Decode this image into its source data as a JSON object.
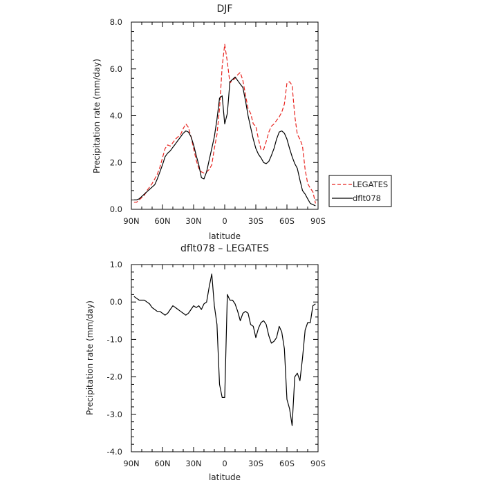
{
  "chart_data": [
    {
      "type": "line",
      "title": "DJF",
      "xlabel": "latitude",
      "ylabel": "Precipitation rate (mm/day)",
      "x_ticks": [
        {
          "value": -90,
          "label": "90N"
        },
        {
          "value": -60,
          "label": "60N"
        },
        {
          "value": -30,
          "label": "30N"
        },
        {
          "value": 0,
          "label": "0"
        },
        {
          "value": 30,
          "label": "30S"
        },
        {
          "value": 60,
          "label": "60S"
        },
        {
          "value": 90,
          "label": "90S"
        }
      ],
      "y_ticks": [
        "0.0",
        "2.0",
        "4.0",
        "6.0",
        "8.0"
      ],
      "xlim": [
        -90,
        90
      ],
      "ylim": [
        0,
        8
      ],
      "grid": false,
      "legend_position": "right, outside plot",
      "series": [
        {
          "name": "LEGATES",
          "color": "#e8231e",
          "style": "dashed",
          "x": [
            -87.5,
            -85,
            -82.5,
            -80,
            -77.5,
            -75,
            -72.5,
            -70,
            -67.5,
            -65,
            -62.5,
            -60,
            -57.5,
            -55,
            -52.5,
            -50,
            -47.5,
            -45,
            -42.5,
            -40,
            -37.5,
            -35,
            -32.5,
            -30,
            -27.5,
            -25,
            -22.5,
            -20,
            -17.5,
            -15,
            -12.5,
            -10,
            -7.5,
            -5,
            -2.5,
            0,
            2.5,
            5,
            7.5,
            10,
            12.5,
            15,
            17.5,
            20,
            22.5,
            25,
            27.5,
            30,
            32.5,
            35,
            37.5,
            40,
            42.5,
            45,
            47.5,
            50,
            52.5,
            55,
            57.5,
            60,
            62.5,
            65,
            67.5,
            70,
            72.5,
            75,
            77.5,
            80,
            82.5,
            85,
            87.5
          ],
          "y": [
            0.3,
            0.3,
            0.4,
            0.5,
            0.6,
            0.8,
            0.95,
            1.1,
            1.3,
            1.5,
            1.8,
            2.2,
            2.6,
            2.75,
            2.7,
            2.85,
            3.0,
            3.1,
            3.2,
            3.45,
            3.65,
            3.5,
            3.1,
            2.6,
            2.1,
            1.75,
            1.6,
            1.55,
            1.6,
            1.7,
            1.9,
            2.6,
            3.2,
            4.3,
            6.1,
            7.05,
            6.3,
            5.4,
            5.5,
            5.6,
            5.75,
            5.85,
            5.5,
            4.9,
            4.3,
            4.1,
            3.65,
            3.55,
            3.0,
            2.55,
            2.55,
            2.9,
            3.3,
            3.55,
            3.65,
            3.8,
            3.95,
            4.15,
            4.5,
            5.4,
            5.45,
            5.3,
            4.0,
            3.2,
            3.0,
            2.7,
            1.7,
            1.1,
            0.9,
            0.75,
            0.25
          ]
        },
        {
          "name": "dflt078",
          "color": "#000000",
          "style": "solid",
          "x": [
            -87.5,
            -85,
            -82.5,
            -80,
            -77.5,
            -75,
            -72.5,
            -70,
            -67.5,
            -65,
            -62.5,
            -60,
            -57.5,
            -55,
            -52.5,
            -50,
            -47.5,
            -45,
            -42.5,
            -40,
            -37.5,
            -35,
            -32.5,
            -30,
            -27.5,
            -25,
            -22.5,
            -20,
            -17.5,
            -15,
            -12.5,
            -10,
            -7.5,
            -5,
            -2.5,
            0,
            2.5,
            5,
            7.5,
            10,
            12.5,
            15,
            17.5,
            20,
            22.5,
            25,
            27.5,
            30,
            32.5,
            35,
            37.5,
            40,
            42.5,
            45,
            47.5,
            50,
            52.5,
            55,
            57.5,
            60,
            62.5,
            65,
            67.5,
            70,
            72.5,
            75,
            77.5,
            80,
            82.5,
            85,
            87.5
          ],
          "y": [
            0.4,
            0.4,
            0.45,
            0.55,
            0.65,
            0.75,
            0.85,
            0.95,
            1.05,
            1.3,
            1.6,
            1.9,
            2.25,
            2.4,
            2.5,
            2.65,
            2.8,
            2.95,
            3.1,
            3.25,
            3.35,
            3.3,
            3.1,
            2.75,
            2.3,
            1.9,
            1.35,
            1.3,
            1.6,
            2.1,
            2.6,
            3.1,
            3.85,
            4.75,
            4.85,
            3.65,
            4.1,
            5.45,
            5.55,
            5.65,
            5.5,
            5.35,
            5.2,
            4.65,
            4.0,
            3.5,
            3.0,
            2.6,
            2.35,
            2.2,
            2.0,
            1.95,
            2.05,
            2.3,
            2.6,
            3.0,
            3.3,
            3.35,
            3.25,
            3.0,
            2.6,
            2.25,
            1.95,
            1.75,
            1.25,
            0.8,
            0.65,
            0.45,
            0.25,
            0.2,
            0.15
          ]
        }
      ]
    },
    {
      "type": "line",
      "title": "dflt078 – LEGATES",
      "xlabel": "latitude",
      "ylabel": "Precipitation rate (mm/day)",
      "x_ticks": [
        {
          "value": -90,
          "label": "90N"
        },
        {
          "value": -60,
          "label": "60N"
        },
        {
          "value": -30,
          "label": "30N"
        },
        {
          "value": 0,
          "label": "0"
        },
        {
          "value": 30,
          "label": "30S"
        },
        {
          "value": 60,
          "label": "60S"
        },
        {
          "value": 90,
          "label": "90S"
        }
      ],
      "y_ticks": [
        "-4.0",
        "-3.0",
        "-2.0",
        "-1.0",
        "0.0",
        "1.0"
      ],
      "xlim": [
        -90,
        90
      ],
      "ylim": [
        -4,
        1
      ],
      "grid": false,
      "series": [
        {
          "color": "#000000",
          "style": "solid",
          "x": [
            -87.5,
            -85,
            -82.5,
            -80,
            -77.5,
            -75,
            -72.5,
            -70,
            -67.5,
            -65,
            -62.5,
            -60,
            -57.5,
            -55,
            -52.5,
            -50,
            -47.5,
            -45,
            -42.5,
            -40,
            -37.5,
            -35,
            -32.5,
            -30,
            -27.5,
            -25,
            -22.5,
            -20,
            -17.5,
            -15,
            -12.5,
            -10,
            -7.5,
            -5,
            -2.5,
            0,
            2.5,
            5,
            7.5,
            10,
            12.5,
            15,
            17.5,
            20,
            22.5,
            25,
            27.5,
            30,
            32.5,
            35,
            37.5,
            40,
            42.5,
            45,
            47.5,
            50,
            52.5,
            55,
            57.5,
            60,
            62.5,
            65,
            67.5,
            70,
            72.5,
            75,
            77.5,
            80,
            82.5,
            85,
            87.5
          ],
          "y": [
            0.15,
            0.1,
            0.05,
            0.05,
            0.05,
            0.0,
            -0.05,
            -0.15,
            -0.2,
            -0.25,
            -0.25,
            -0.3,
            -0.35,
            -0.3,
            -0.2,
            -0.1,
            -0.15,
            -0.2,
            -0.25,
            -0.3,
            -0.35,
            -0.3,
            -0.2,
            -0.1,
            -0.15,
            -0.1,
            -0.2,
            -0.05,
            0.0,
            0.4,
            0.75,
            -0.1,
            -0.6,
            -2.2,
            -2.55,
            -2.55,
            0.2,
            0.05,
            0.05,
            -0.05,
            -0.25,
            -0.5,
            -0.3,
            -0.25,
            -0.3,
            -0.6,
            -0.65,
            -0.95,
            -0.7,
            -0.55,
            -0.5,
            -0.6,
            -0.9,
            -1.1,
            -1.05,
            -0.95,
            -0.65,
            -0.8,
            -1.25,
            -2.6,
            -2.85,
            -3.3,
            -2.0,
            -1.9,
            -2.1,
            -1.5,
            -0.75,
            -0.55,
            -0.55,
            -0.1,
            -0.05
          ]
        }
      ]
    }
  ]
}
